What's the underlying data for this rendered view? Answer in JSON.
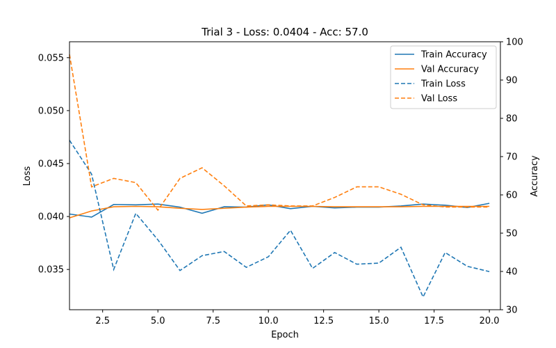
{
  "chart_data": {
    "type": "line",
    "title": "Trial 3 - Loss: 0.0404 - Acc: 57.0",
    "xlabel": "Epoch",
    "ylabel_left": "Loss",
    "ylabel_right": "Accuracy",
    "xlim": [
      1,
      20.5
    ],
    "ylim_left": [
      0.0312,
      0.0565
    ],
    "ylim_right": [
      30,
      100
    ],
    "x_ticks": [
      2.5,
      5.0,
      7.5,
      10.0,
      12.5,
      15.0,
      17.5,
      20.0
    ],
    "x_tick_labels": [
      "2.5",
      "5.0",
      "7.5",
      "10.0",
      "12.5",
      "15.0",
      "17.5",
      "20.0"
    ],
    "y_left_ticks": [
      0.035,
      0.04,
      0.045,
      0.05,
      0.055
    ],
    "y_left_tick_labels": [
      "0.035",
      "0.040",
      "0.045",
      "0.050",
      "0.055"
    ],
    "y_right_ticks": [
      30,
      40,
      50,
      60,
      70,
      80,
      90,
      100
    ],
    "y_right_tick_labels": [
      "30",
      "40",
      "50",
      "60",
      "70",
      "80",
      "90",
      "100"
    ],
    "legend_position": "top-right",
    "grid": false,
    "x": [
      1,
      2,
      3,
      4,
      5,
      6,
      7,
      8,
      9,
      10,
      11,
      12,
      13,
      14,
      15,
      16,
      17,
      18,
      19,
      20
    ],
    "series": [
      {
        "name": "Train Accuracy",
        "axis": "right",
        "style": "solid",
        "color": "#1f77b4",
        "values": [
          55.0,
          54.2,
          57.5,
          57.4,
          57.6,
          56.8,
          55.2,
          56.9,
          56.8,
          57.4,
          56.4,
          57.0,
          56.6,
          56.8,
          56.8,
          57.1,
          57.6,
          57.3,
          56.7,
          57.8
        ]
      },
      {
        "name": "Val Accuracy",
        "axis": "right",
        "style": "solid",
        "color": "#ff7f0e",
        "values": [
          54.0,
          55.8,
          56.9,
          57.0,
          56.9,
          56.5,
          56.2,
          56.5,
          56.8,
          57.0,
          57.0,
          57.0,
          56.9,
          56.9,
          56.9,
          56.9,
          57.0,
          57.0,
          57.0,
          57.0
        ]
      },
      {
        "name": "Train Loss",
        "axis": "left",
        "style": "dashed",
        "color": "#1f77b4",
        "values": [
          0.0472,
          0.044,
          0.035,
          0.0403,
          0.0378,
          0.0349,
          0.0363,
          0.0367,
          0.0352,
          0.0362,
          0.0387,
          0.0351,
          0.0366,
          0.0355,
          0.0356,
          0.0371,
          0.0324,
          0.0366,
          0.0353,
          0.0348
        ]
      },
      {
        "name": "Val Loss",
        "axis": "left",
        "style": "dashed",
        "color": "#ff7f0e",
        "values": [
          0.0553,
          0.0428,
          0.0436,
          0.0432,
          0.0406,
          0.0436,
          0.0446,
          0.0429,
          0.041,
          0.0411,
          0.041,
          0.041,
          0.0418,
          0.0428,
          0.0428,
          0.0421,
          0.0411,
          0.0409,
          0.0409,
          0.0409
        ]
      }
    ]
  }
}
